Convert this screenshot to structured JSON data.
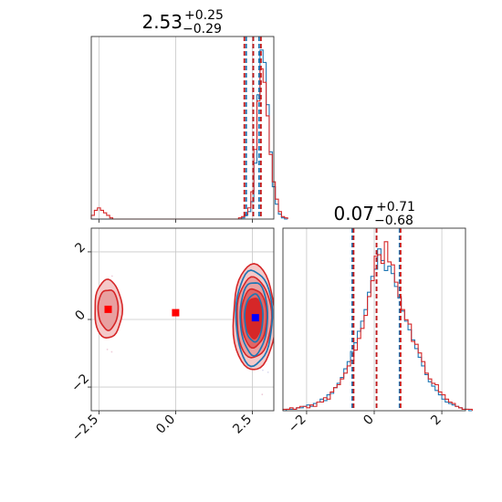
{
  "colors": {
    "red": "#d62728",
    "blue": "#1f77b4",
    "dark_red": "#c41a1a"
  },
  "titles": {
    "param1": {
      "median": "2.53",
      "plus": "+0.25",
      "minus": "−0.29"
    },
    "param2": {
      "median": "0.07",
      "plus": "+0.71",
      "minus": "−0.68"
    }
  },
  "chart_data": {
    "type": "corner",
    "param1_range": [
      -2.75,
      3.2
    ],
    "param2_range": [
      -2.7,
      2.7
    ],
    "param1_ticks": [
      {
        "value": -2.5,
        "label": "−2.5"
      },
      {
        "value": 0.0,
        "label": "0.0"
      },
      {
        "value": 2.5,
        "label": "2.5"
      }
    ],
    "param2_ticks": [
      {
        "value": -2,
        "label": "−2"
      },
      {
        "value": 0,
        "label": "0"
      },
      {
        "value": 2,
        "label": "2"
      }
    ],
    "grid": true,
    "series": [
      {
        "color": "red",
        "param1_quantiles": [
          2.24,
          2.53,
          2.78
        ],
        "param2_quantiles": [
          -0.61,
          0.07,
          0.78
        ],
        "param1_histogram": {
          "edges_start": -2.75,
          "bin_width": 0.1,
          "counts": [
            3,
            7,
            9,
            7,
            5,
            3,
            1,
            0,
            0,
            0,
            0,
            0,
            0,
            0,
            0,
            0,
            0,
            0,
            0,
            0,
            0,
            0,
            0,
            0,
            0,
            0,
            0,
            0,
            0,
            0,
            0,
            0,
            0,
            0,
            0,
            0,
            0,
            0,
            0,
            0,
            0,
            0,
            0,
            0,
            0,
            0,
            0,
            0,
            1,
            2,
            4,
            9,
            22,
            56,
            95,
            121,
            110,
            83,
            52,
            30,
            16,
            6,
            2,
            1
          ]
        },
        "param2_histogram": {
          "edges_start": -2.7,
          "bin_width": 0.1,
          "counts": [
            1,
            1,
            2,
            1,
            2,
            3,
            3,
            2,
            4,
            3,
            6,
            6,
            9,
            8,
            13,
            16,
            18,
            22,
            26,
            31,
            35,
            42,
            50,
            57,
            66,
            79,
            90,
            107,
            108,
            102,
            117,
            103,
            101,
            89,
            79,
            70,
            63,
            60,
            48,
            46,
            40,
            34,
            26,
            22,
            19,
            18,
            13,
            11,
            8,
            6,
            5,
            3,
            2,
            1,
            1,
            1
          ]
        }
      },
      {
        "color": "blue",
        "param1_quantiles": [
          2.3,
          2.53,
          2.72
        ],
        "param2_quantiles": [
          -0.65,
          0.07,
          0.75
        ],
        "param1_histogram": {
          "edges_start": -2.75,
          "bin_width": 0.1,
          "counts": [
            0,
            0,
            0,
            0,
            0,
            0,
            0,
            0,
            0,
            0,
            0,
            0,
            0,
            0,
            0,
            0,
            0,
            0,
            0,
            0,
            0,
            0,
            0,
            0,
            0,
            0,
            0,
            0,
            0,
            0,
            0,
            0,
            0,
            0,
            0,
            0,
            0,
            0,
            0,
            0,
            0,
            0,
            0,
            0,
            0,
            0,
            0,
            0,
            0,
            1,
            3,
            6,
            14,
            45,
            100,
            136,
            126,
            92,
            54,
            26,
            12,
            4,
            1,
            0
          ]
        },
        "param2_histogram": {
          "edges_start": -2.7,
          "bin_width": 0.1,
          "counts": [
            0,
            1,
            1,
            1,
            2,
            2,
            3,
            4,
            3,
            5,
            6,
            8,
            7,
            11,
            12,
            16,
            19,
            23,
            29,
            34,
            41,
            47,
            55,
            62,
            70,
            82,
            93,
            98,
            112,
            104,
            97,
            100,
            95,
            86,
            78,
            69,
            62,
            56,
            49,
            43,
            37,
            31,
            25,
            20,
            17,
            14,
            11,
            8,
            6,
            5,
            4,
            3,
            2,
            1,
            1,
            0
          ]
        }
      }
    ],
    "markers": [
      {
        "color": "red",
        "param1": -2.2,
        "param2": 0.3
      },
      {
        "color": "red",
        "param1": 0.0,
        "param2": 0.2
      },
      {
        "color": "blue",
        "param1": 2.6,
        "param2": 0.05
      }
    ]
  }
}
